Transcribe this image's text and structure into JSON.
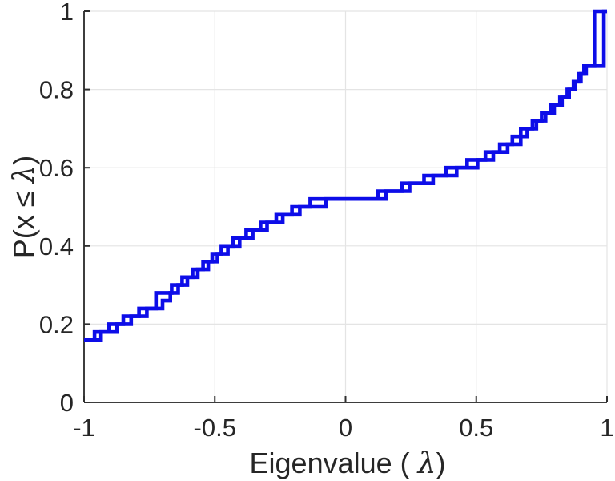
{
  "chart_data": {
    "type": "step",
    "title": "",
    "xlabel": "Eigenvalue ( λ)",
    "xlabel_parts": [
      "Eigenvalue ( ",
      "λ",
      ")"
    ],
    "ylabel": "P(x ≤ λ)",
    "ylabel_parts": [
      "P(x ≤ ",
      "λ",
      ")"
    ],
    "xlim": [
      -1,
      1
    ],
    "ylim": [
      0,
      1
    ],
    "xticks": [
      -1,
      -0.5,
      0,
      0.5,
      1
    ],
    "xtick_labels": [
      "-1",
      "-0.5",
      "0",
      "0.5",
      "1"
    ],
    "yticks": [
      0,
      0.2,
      0.4,
      0.6,
      0.8,
      1
    ],
    "ytick_labels": [
      "0",
      "0.2",
      "0.4",
      "0.6",
      "0.8",
      "1"
    ],
    "grid": true,
    "legend": "none",
    "line_color": "#0d0de8",
    "grid_color": "#e4e4e4",
    "axis_color": "#3d3d3d",
    "tick_color": "#2f2f2f",
    "text_color": "#262626",
    "series": [
      {
        "name": "ecdf-step-series-1",
        "start_value": 0.16,
        "end_value": 1.0,
        "jumps": [
          [
            -0.96,
            0.18
          ],
          [
            -0.905,
            0.2
          ],
          [
            -0.85,
            0.22
          ],
          [
            -0.79,
            0.24
          ],
          [
            -0.725,
            0.26
          ],
          [
            -0.725,
            0.28
          ],
          [
            -0.665,
            0.3
          ],
          [
            -0.625,
            0.32
          ],
          [
            -0.585,
            0.34
          ],
          [
            -0.545,
            0.36
          ],
          [
            -0.51,
            0.38
          ],
          [
            -0.475,
            0.4
          ],
          [
            -0.43,
            0.42
          ],
          [
            -0.38,
            0.44
          ],
          [
            -0.325,
            0.46
          ],
          [
            -0.265,
            0.48
          ],
          [
            -0.205,
            0.5
          ],
          [
            -0.135,
            0.52
          ],
          [
            0.155,
            0.54
          ],
          [
            0.245,
            0.56
          ],
          [
            0.335,
            0.58
          ],
          [
            0.425,
            0.6
          ],
          [
            0.505,
            0.62
          ],
          [
            0.565,
            0.64
          ],
          [
            0.62,
            0.66
          ],
          [
            0.67,
            0.68
          ],
          [
            0.67,
            0.7
          ],
          [
            0.715,
            0.72
          ],
          [
            0.75,
            0.74
          ],
          [
            0.785,
            0.76
          ],
          [
            0.82,
            0.78
          ],
          [
            0.848,
            0.8
          ],
          [
            0.872,
            0.82
          ],
          [
            0.893,
            0.84
          ],
          [
            0.912,
            0.86
          ],
          [
            0.952,
            1.0
          ]
        ]
      },
      {
        "name": "ecdf-step-series-2",
        "start_value": 0.16,
        "end_value": 1.0,
        "jumps": [
          [
            -0.935,
            0.18
          ],
          [
            -0.875,
            0.2
          ],
          [
            -0.82,
            0.22
          ],
          [
            -0.76,
            0.24
          ],
          [
            -0.7,
            0.26
          ],
          [
            -0.67,
            0.28
          ],
          [
            -0.64,
            0.3
          ],
          [
            -0.605,
            0.32
          ],
          [
            -0.565,
            0.34
          ],
          [
            -0.525,
            0.36
          ],
          [
            -0.49,
            0.38
          ],
          [
            -0.45,
            0.4
          ],
          [
            -0.405,
            0.42
          ],
          [
            -0.355,
            0.44
          ],
          [
            -0.3,
            0.46
          ],
          [
            -0.24,
            0.48
          ],
          [
            -0.175,
            0.5
          ],
          [
            -0.075,
            0.52
          ],
          [
            0.125,
            0.54
          ],
          [
            0.215,
            0.56
          ],
          [
            0.3,
            0.58
          ],
          [
            0.385,
            0.6
          ],
          [
            0.465,
            0.62
          ],
          [
            0.535,
            0.64
          ],
          [
            0.59,
            0.66
          ],
          [
            0.638,
            0.68
          ],
          [
            0.695,
            0.7
          ],
          [
            0.73,
            0.72
          ],
          [
            0.765,
            0.74
          ],
          [
            0.798,
            0.76
          ],
          [
            0.828,
            0.78
          ],
          [
            0.855,
            0.8
          ],
          [
            0.878,
            0.82
          ],
          [
            0.9,
            0.84
          ],
          [
            0.92,
            0.86
          ],
          [
            0.988,
            1.0
          ]
        ]
      }
    ]
  }
}
